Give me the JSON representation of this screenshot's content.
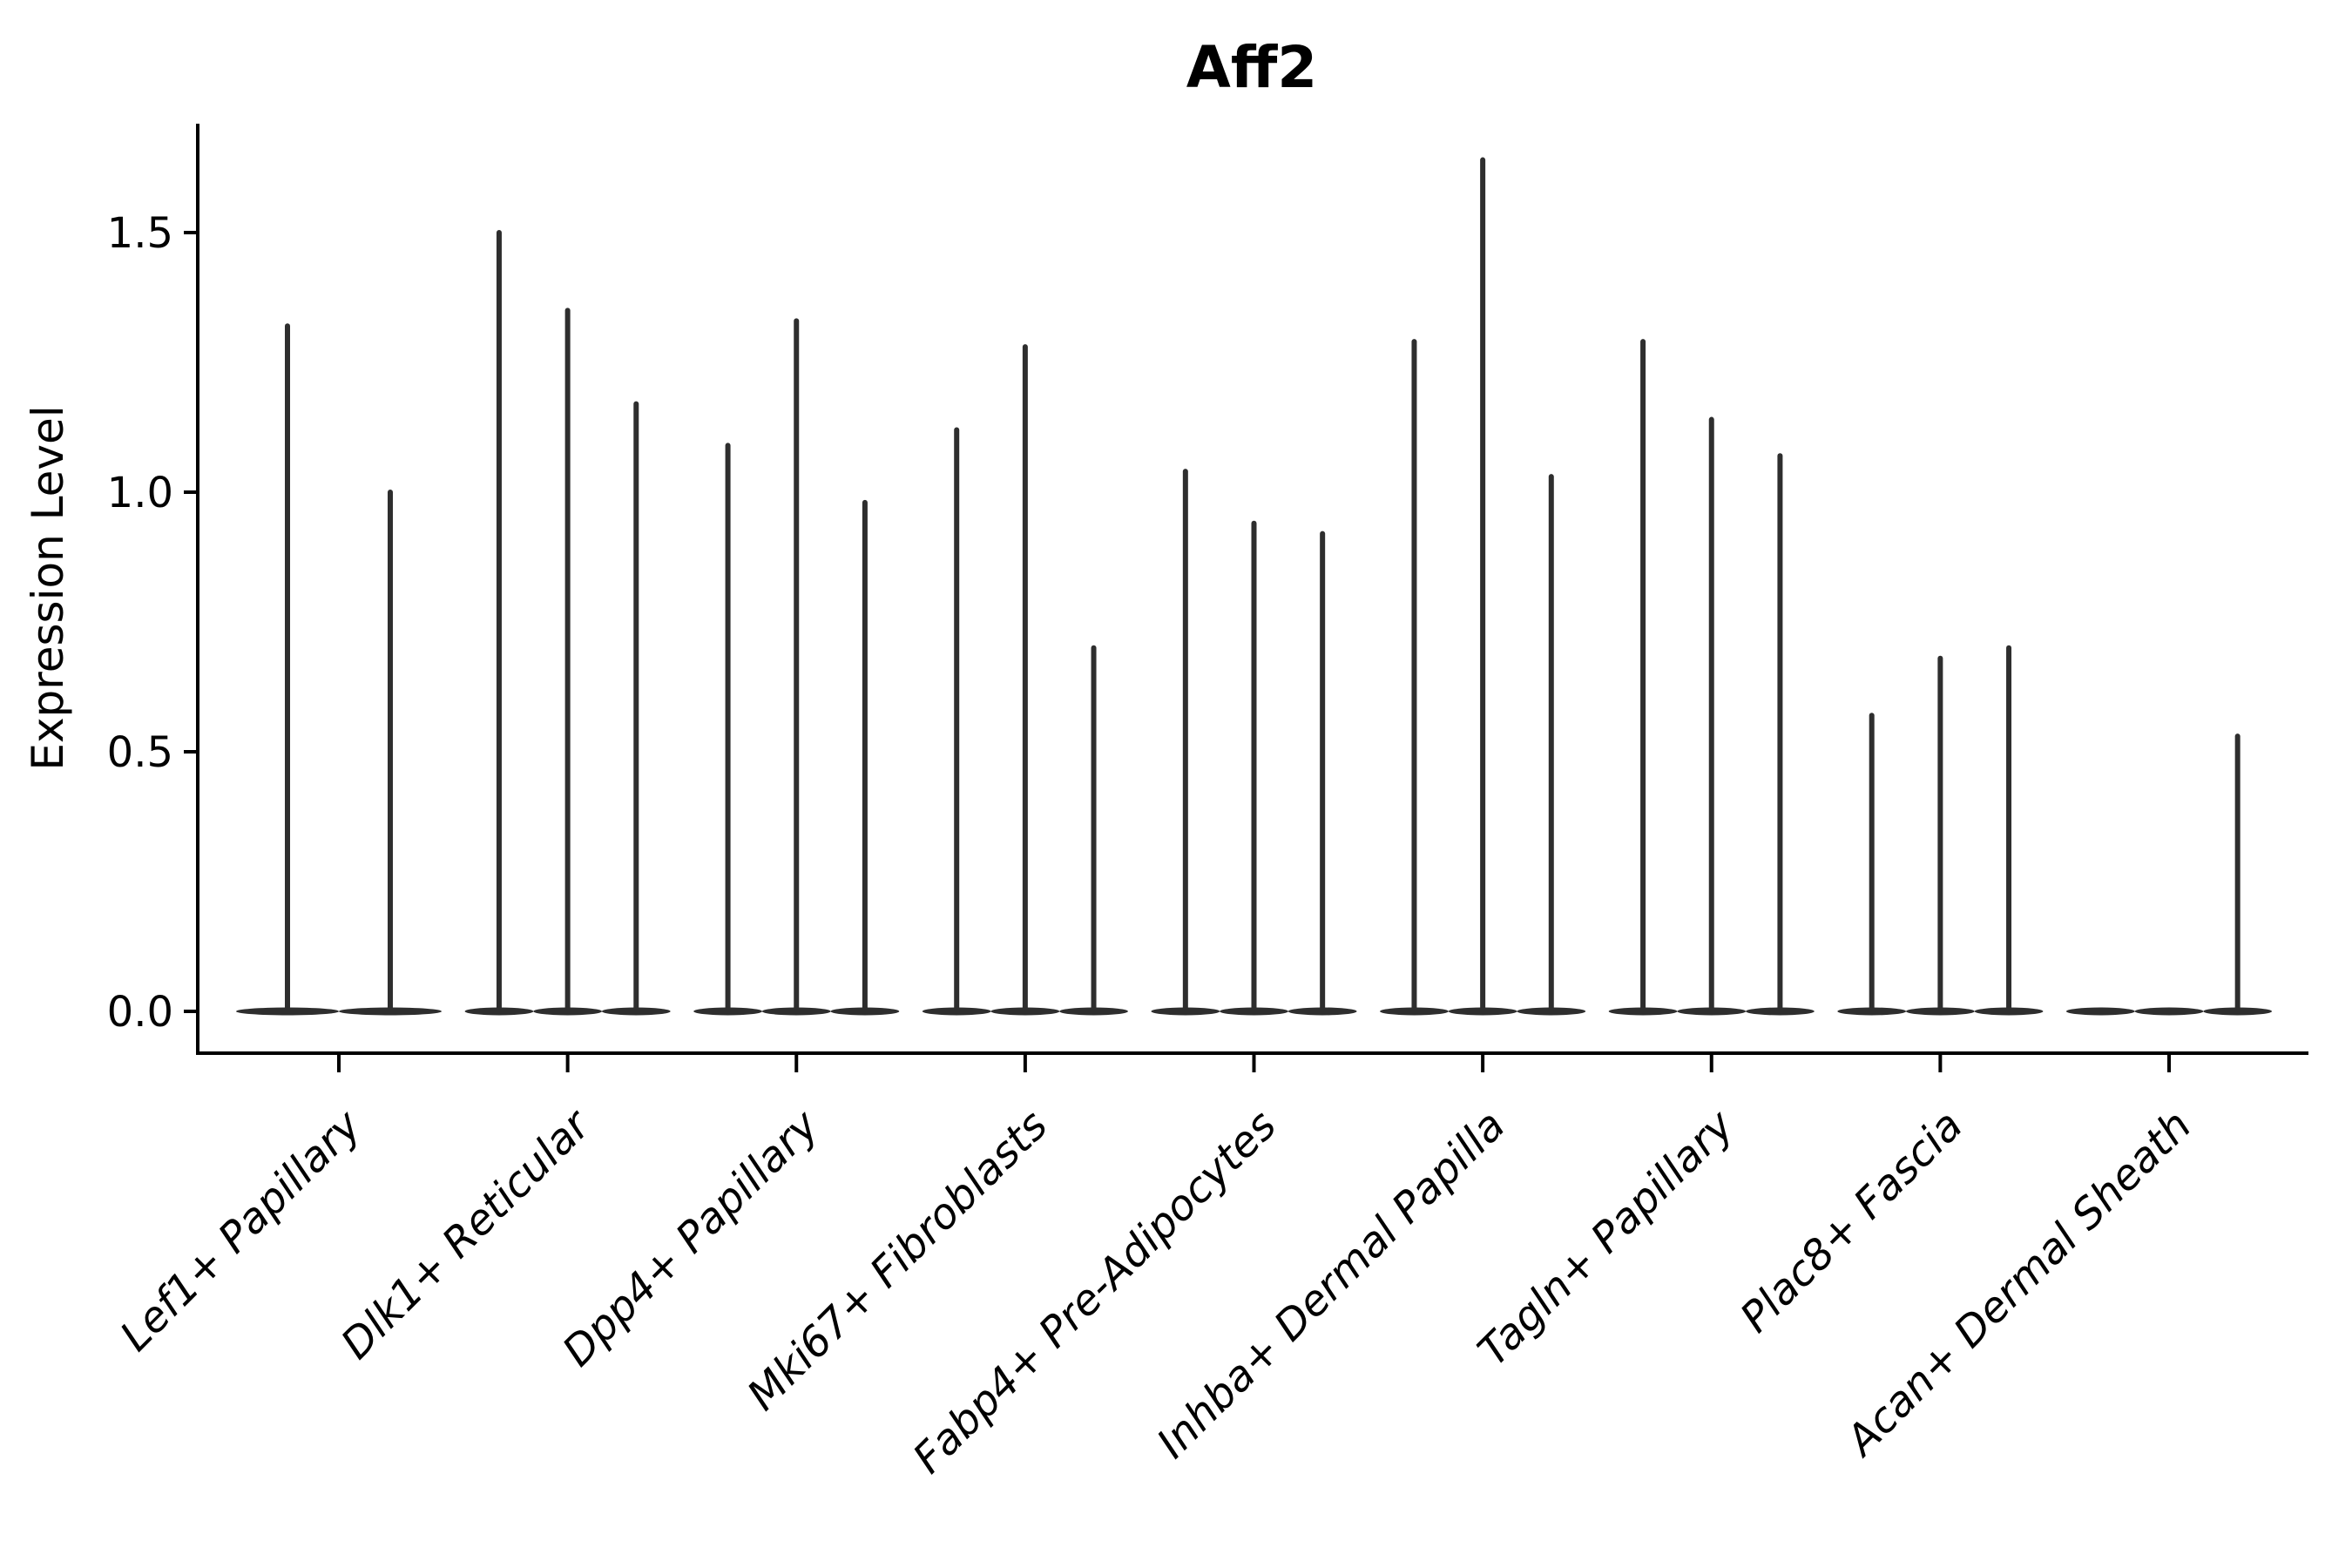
{
  "chart_data": {
    "type": "violin",
    "title": "Aff2",
    "ylabel": "Expression Level",
    "xlabel": "",
    "legend": null,
    "grid": false,
    "y_ticks": [
      0.0,
      0.5,
      1.0,
      1.5
    ],
    "y_tick_labels": [
      "0.0",
      "0.5",
      "1.0",
      "1.5"
    ],
    "ylim": [
      -0.08,
      1.72
    ],
    "categories": [
      "Lef1+ Papillary",
      "Dlk1+ Reticular",
      "Dpp4+ Papillary",
      "Mki67+ Fibroblasts",
      "Fabp4+ Pre-Adipocytes",
      "Inhba+ Dermal Papilla",
      "Tagln+ Papillary",
      "Plac8+ Fascia",
      "Acan+ Dermal Sheath"
    ],
    "groups": [
      {
        "label": "Lef1+ Papillary",
        "violins": [
          1.32,
          1.0
        ]
      },
      {
        "label": "Dlk1+ Reticular",
        "violins": [
          1.5,
          1.35,
          1.17
        ]
      },
      {
        "label": "Dpp4+ Papillary",
        "violins": [
          1.09,
          1.33,
          0.98
        ]
      },
      {
        "label": "Mki67+ Fibroblasts",
        "violins": [
          1.12,
          1.28,
          0.7
        ]
      },
      {
        "label": "Fabp4+ Pre-Adipocytes",
        "violins": [
          1.04,
          0.94,
          0.92
        ]
      },
      {
        "label": "Inhba+ Dermal Papilla",
        "violins": [
          1.29,
          1.64,
          1.03
        ]
      },
      {
        "label": "Tagln+ Papillary",
        "violins": [
          1.29,
          1.14,
          1.07
        ]
      },
      {
        "label": "Plac8+ Fascia",
        "violins": [
          0.57,
          0.68,
          0.7
        ]
      },
      {
        "label": "Acan+ Dermal Sheath",
        "violins": [
          0.0,
          0.0,
          0.53
        ]
      }
    ],
    "colors": {
      "violin_ink": "#2e2e2e",
      "axis": "#000000",
      "text": "#000000",
      "background": "#ffffff"
    }
  }
}
